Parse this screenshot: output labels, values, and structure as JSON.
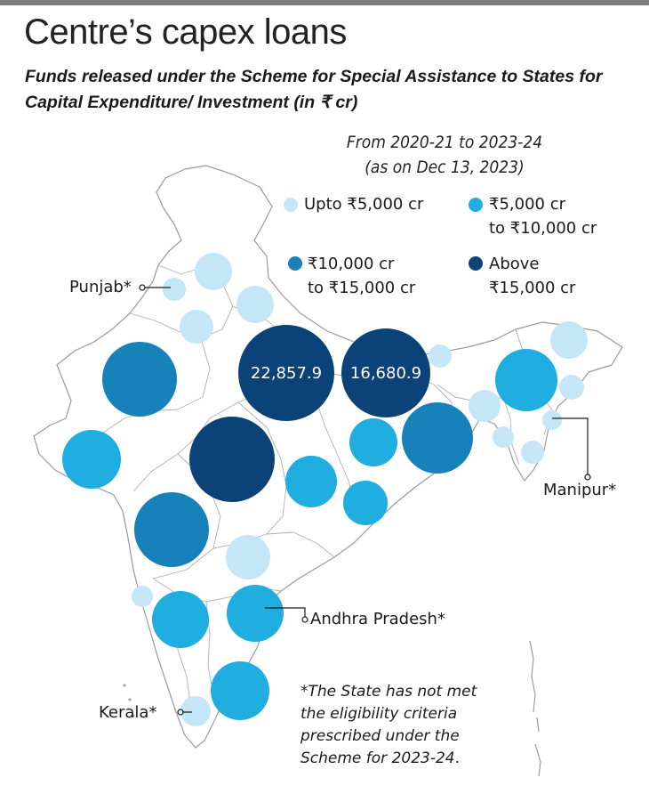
{
  "title": "Centre’s capex loans",
  "subtitle": "Funds released under the Scheme for Special Assistance to States for Capital Expenditure/ Investment (in ₹ cr)",
  "period": {
    "line1": "From 2020-21 to 2023-24",
    "line2": "(as on Dec 13, 2023)"
  },
  "colors": {
    "upto_5000": "#c5e6f6",
    "5000_to_10000": "#20aee0",
    "10000_to_15000": "#1781b9",
    "above_15000": "#0b4277",
    "map_outline": "#9a9a9a"
  },
  "legend": [
    {
      "line1": "Upto ₹5,000 cr",
      "line2": "",
      "color_key": "upto_5000"
    },
    {
      "line1": "₹5,000 cr",
      "line2": "to ₹10,000 cr",
      "color_key": "5000_to_10000"
    },
    {
      "line1": "₹10,000 cr",
      "line2": "to ₹15,000 cr",
      "color_key": "10000_to_15000"
    },
    {
      "line1": "Above",
      "line2": "₹15,000 cr",
      "color_key": "above_15000"
    }
  ],
  "bubble_labels": {
    "uttar_pradesh": "22,857.9",
    "bihar": "16,680.9"
  },
  "callouts": {
    "punjab": "Punjab*",
    "manipur": "Manipur*",
    "andhra_pradesh": "Andhra Pradesh*",
    "kerala": "Kerala*"
  },
  "footnote": {
    "line1": "*The State has not met",
    "line2": "the eligibility criteria",
    "line3": "prescribed under the",
    "line4_italic": "Scheme for 2023-24",
    "line4_end": "."
  }
}
